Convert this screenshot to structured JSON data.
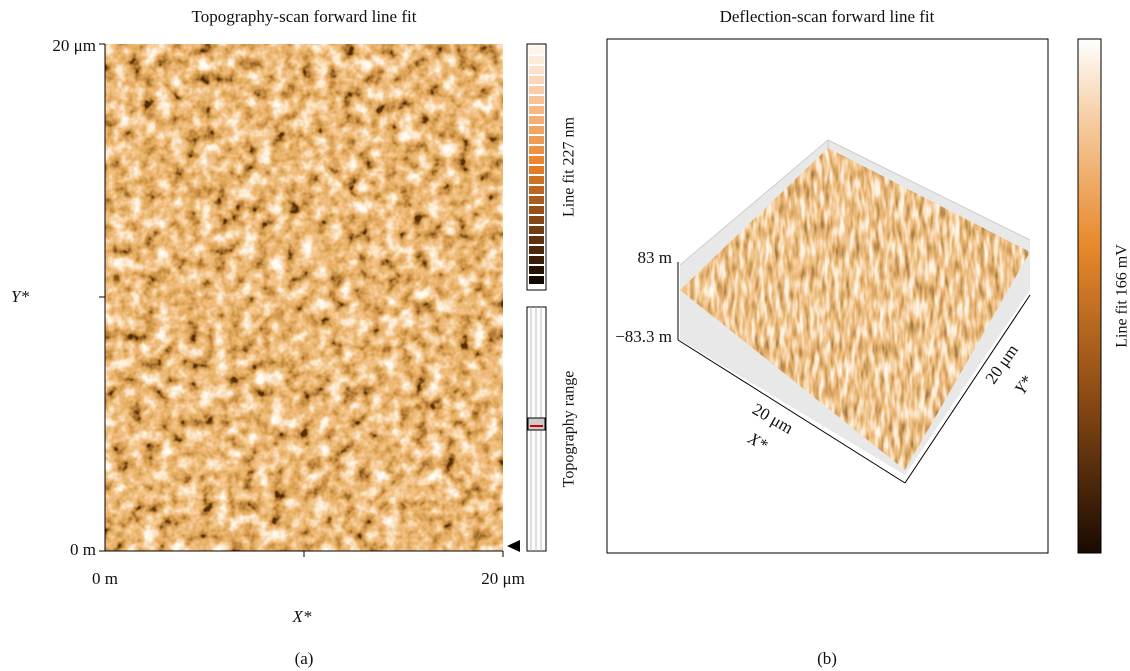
{
  "panels": [
    {
      "title": "Topography-scan forward line fit",
      "y_ticks": [
        "20 μm",
        "0 m"
      ],
      "y_label": "Y*",
      "x_ticks": [
        "0 m",
        "20 μm"
      ],
      "x_label": "X*",
      "colorbar_label": "Line fit 227 nm",
      "range_label": "Topography range",
      "caption": "(a)"
    },
    {
      "title": "Deflection-scan forward line fit",
      "z_ticks": [
        "83 m",
        "−83.3 m"
      ],
      "x_tick": "20 μm",
      "x_label": "X*",
      "y_tick": "20 μm",
      "y_label": "Y*",
      "colorbar_label": "Line fit 166 mV",
      "caption": "(b)"
    }
  ]
}
